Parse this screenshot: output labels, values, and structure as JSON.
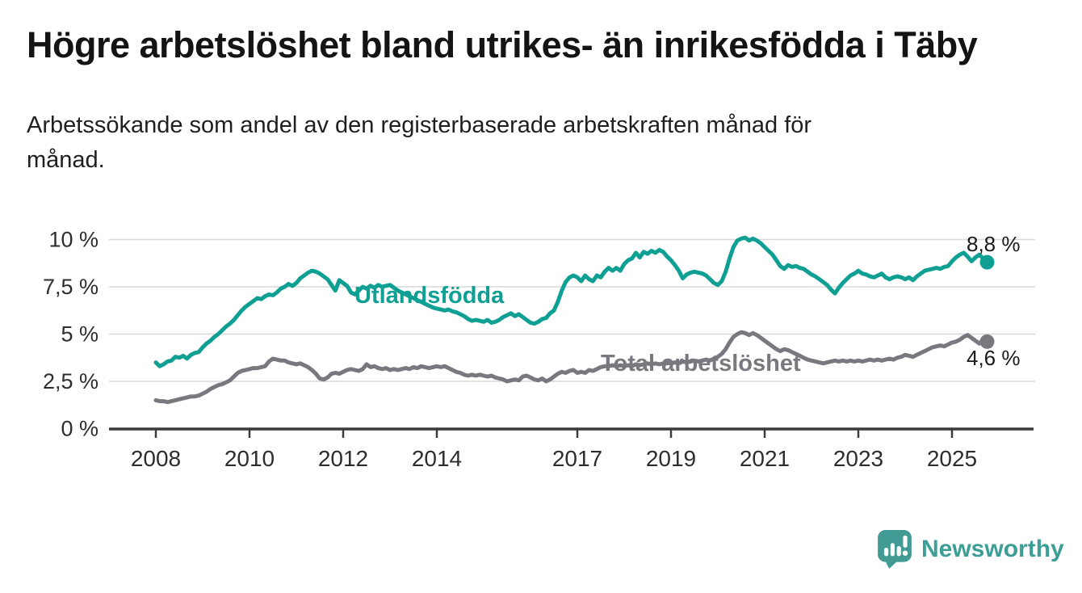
{
  "header": {
    "title": "Högre arbetslöshet bland utrikes- än inrikesfödda i Täby",
    "subtitle_line1": "Arbetssökande som andel av den registerbaserade arbetskraften månad för",
    "subtitle_line2": "månad."
  },
  "footer": {
    "brand": "Newsworthy",
    "brand_color": "#3d9e96",
    "logo_icon": "bar-chart-speech-bubble-icon"
  },
  "chart_data": {
    "type": "line",
    "title": "Högre arbetslöshet bland utrikes- än inrikesfödda i Täby",
    "subtitle": "Arbetssökande som andel av den registerbaserade arbetskraften månad för månad.",
    "unit": "%",
    "x_interval": "month",
    "x_start": "2008-01",
    "x_end": "2025-10",
    "ylim": [
      0,
      10
    ],
    "grid": true,
    "legend_position": "inline-labels",
    "y_ticks": [
      {
        "value": 10,
        "label": "10 %"
      },
      {
        "value": 7.5,
        "label": "7,5 %"
      },
      {
        "value": 5,
        "label": "5 %"
      },
      {
        "value": 2.5,
        "label": "2,5 %"
      },
      {
        "value": 0,
        "label": "0 %"
      }
    ],
    "x_ticks": [
      2008,
      2010,
      2012,
      2014,
      2017,
      2019,
      2021,
      2023,
      2025
    ],
    "axis_color": "#3b3b3b",
    "gridline_color": "#d8d8d8",
    "tick_label_color": "#2d2d2d",
    "annotation_color": "#1a1a1a",
    "series": [
      {
        "name": "Total arbetslöshet",
        "color": "#7a787f",
        "end_label": "4,6 %",
        "last_value": 4.6,
        "values": [
          1.5,
          1.45,
          1.45,
          1.4,
          1.45,
          1.5,
          1.55,
          1.6,
          1.65,
          1.7,
          1.7,
          1.75,
          1.85,
          1.95,
          2.1,
          2.2,
          2.3,
          2.35,
          2.45,
          2.55,
          2.75,
          2.95,
          3.05,
          3.1,
          3.15,
          3.2,
          3.2,
          3.25,
          3.3,
          3.55,
          3.7,
          3.65,
          3.6,
          3.6,
          3.5,
          3.45,
          3.4,
          3.45,
          3.35,
          3.25,
          3.1,
          2.9,
          2.65,
          2.6,
          2.7,
          2.9,
          2.95,
          2.9,
          3.0,
          3.1,
          3.15,
          3.1,
          3.05,
          3.15,
          3.4,
          3.25,
          3.3,
          3.2,
          3.15,
          3.2,
          3.1,
          3.15,
          3.1,
          3.15,
          3.2,
          3.15,
          3.25,
          3.2,
          3.3,
          3.25,
          3.2,
          3.25,
          3.3,
          3.25,
          3.3,
          3.2,
          3.1,
          3.0,
          2.95,
          2.85,
          2.8,
          2.85,
          2.8,
          2.85,
          2.8,
          2.75,
          2.8,
          2.7,
          2.65,
          2.6,
          2.5,
          2.55,
          2.6,
          2.55,
          2.75,
          2.8,
          2.7,
          2.6,
          2.55,
          2.65,
          2.5,
          2.6,
          2.75,
          2.9,
          3.0,
          2.95,
          3.05,
          3.1,
          2.95,
          3.0,
          2.95,
          3.1,
          3.05,
          3.15,
          3.25,
          3.3,
          3.3,
          3.35,
          3.3,
          3.35,
          3.3,
          3.35,
          3.3,
          3.4,
          3.35,
          3.4,
          3.45,
          3.4,
          3.45,
          3.4,
          3.45,
          3.5,
          3.45,
          3.5,
          3.45,
          3.55,
          3.5,
          3.55,
          3.6,
          3.55,
          3.6,
          3.65,
          3.6,
          3.7,
          3.8,
          3.95,
          4.2,
          4.55,
          4.85,
          5.0,
          5.1,
          5.05,
          4.95,
          5.05,
          4.95,
          4.8,
          4.65,
          4.5,
          4.35,
          4.2,
          4.1,
          4.2,
          4.15,
          4.05,
          3.95,
          3.85,
          3.75,
          3.65,
          3.6,
          3.55,
          3.5,
          3.45,
          3.5,
          3.55,
          3.6,
          3.55,
          3.6,
          3.55,
          3.6,
          3.55,
          3.6,
          3.55,
          3.6,
          3.65,
          3.6,
          3.65,
          3.6,
          3.65,
          3.7,
          3.65,
          3.75,
          3.8,
          3.9,
          3.85,
          3.8,
          3.9,
          4.0,
          4.1,
          4.2,
          4.3,
          4.35,
          4.4,
          4.35,
          4.45,
          4.55,
          4.6,
          4.7,
          4.85,
          4.95,
          4.8,
          4.65,
          4.5,
          4.7,
          4.6
        ]
      },
      {
        "name": "Utlandsfödda",
        "color": "#0f9f93",
        "end_label": "8,8 %",
        "last_value": 8.8,
        "values": [
          3.5,
          3.3,
          3.4,
          3.55,
          3.6,
          3.8,
          3.75,
          3.85,
          3.7,
          3.9,
          4.0,
          4.05,
          4.3,
          4.5,
          4.65,
          4.85,
          5.0,
          5.2,
          5.4,
          5.55,
          5.75,
          6.0,
          6.25,
          6.45,
          6.6,
          6.75,
          6.9,
          6.85,
          7.0,
          7.1,
          7.05,
          7.2,
          7.4,
          7.5,
          7.65,
          7.55,
          7.7,
          7.95,
          8.1,
          8.25,
          8.35,
          8.3,
          8.2,
          8.05,
          7.9,
          7.6,
          7.3,
          7.85,
          7.7,
          7.55,
          7.2,
          7.1,
          7.3,
          7.5,
          7.4,
          7.55,
          7.45,
          7.6,
          7.5,
          7.55,
          7.6,
          7.45,
          7.3,
          7.2,
          7.1,
          7.0,
          6.9,
          6.8,
          6.7,
          6.6,
          6.5,
          6.4,
          6.35,
          6.3,
          6.25,
          6.3,
          6.2,
          6.15,
          6.05,
          5.95,
          5.8,
          5.7,
          5.75,
          5.7,
          5.65,
          5.75,
          5.6,
          5.65,
          5.75,
          5.9,
          6.0,
          6.1,
          5.95,
          6.05,
          5.9,
          5.75,
          5.6,
          5.55,
          5.65,
          5.8,
          5.85,
          6.1,
          6.25,
          6.7,
          7.3,
          7.75,
          8.0,
          8.1,
          8.0,
          7.8,
          8.1,
          7.9,
          7.8,
          8.1,
          8.0,
          8.3,
          8.5,
          8.35,
          8.5,
          8.35,
          8.7,
          8.9,
          9.0,
          9.3,
          9.05,
          9.35,
          9.25,
          9.4,
          9.3,
          9.45,
          9.35,
          9.1,
          8.9,
          8.65,
          8.35,
          7.95,
          8.15,
          8.25,
          8.3,
          8.25,
          8.2,
          8.1,
          7.9,
          7.7,
          7.6,
          7.8,
          8.3,
          9.0,
          9.6,
          9.95,
          10.05,
          10.1,
          9.95,
          10.05,
          9.95,
          9.8,
          9.6,
          9.4,
          9.2,
          8.9,
          8.6,
          8.45,
          8.65,
          8.55,
          8.6,
          8.5,
          8.45,
          8.3,
          8.15,
          8.05,
          7.9,
          7.75,
          7.6,
          7.35,
          7.15,
          7.45,
          7.7,
          7.9,
          8.1,
          8.2,
          8.35,
          8.2,
          8.15,
          8.05,
          8.0,
          8.1,
          8.2,
          8.0,
          7.9,
          8.0,
          8.05,
          8.0,
          7.9,
          8.0,
          7.85,
          8.05,
          8.2,
          8.35,
          8.4,
          8.45,
          8.5,
          8.45,
          8.55,
          8.6,
          8.85,
          9.05,
          9.2,
          9.3,
          9.1,
          8.85,
          9.05,
          9.2,
          9.0,
          8.8
        ]
      }
    ]
  }
}
